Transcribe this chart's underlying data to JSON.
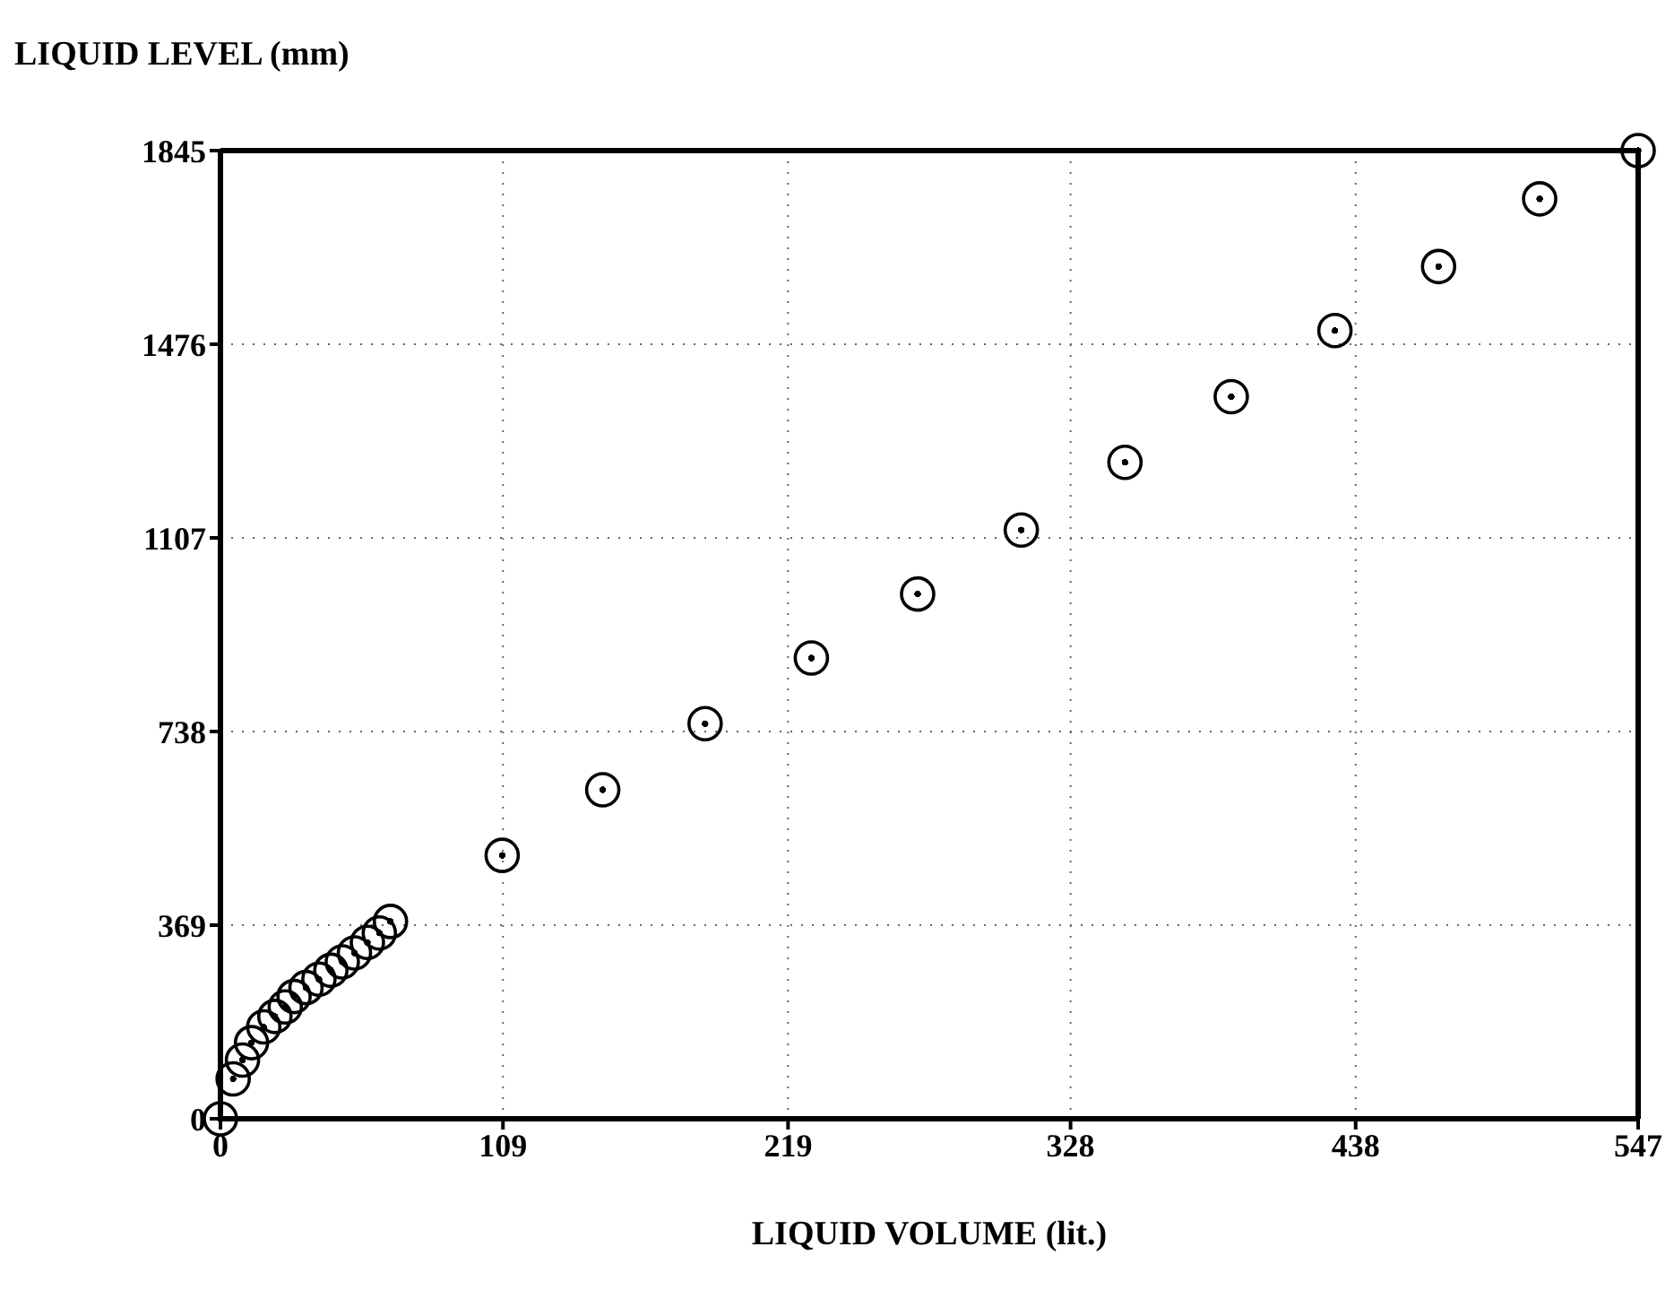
{
  "chart_data": {
    "type": "scatter",
    "xlabel": "LIQUID VOLUME (lit.)",
    "ylabel": "LIQUID LEVEL (mm)",
    "x": [
      0,
      4.9,
      8.5,
      12,
      16.7,
      21,
      25,
      28.4,
      33,
      38,
      42.6,
      47,
      51.7,
      56.7,
      61.3,
      65.6,
      108.7,
      147.5,
      187,
      228,
      269,
      309,
      349,
      390,
      430,
      470,
      509,
      547
    ],
    "values": [
      0,
      76,
      112,
      145,
      175,
      195,
      213,
      233,
      250,
      266,
      283,
      299,
      316,
      336,
      354,
      376,
      502,
      627,
      753,
      878,
      1000,
      1122,
      1251,
      1376,
      1502,
      1624,
      1753,
      1845
    ],
    "color": "#000000",
    "marker": "circle",
    "xlim": [
      0,
      547
    ],
    "xticks": [
      0,
      109,
      219,
      328,
      438,
      547
    ],
    "ylim": [
      0,
      1845
    ],
    "yticks": [
      0,
      369,
      738,
      1107,
      1476,
      1845
    ],
    "grid": true
  }
}
